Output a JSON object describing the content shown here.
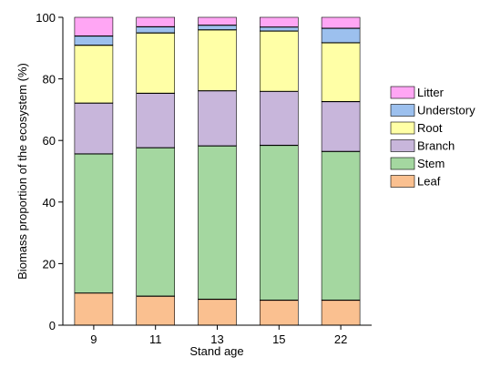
{
  "chart_data": {
    "type": "bar",
    "stacked": true,
    "categories": [
      "9",
      "11",
      "13",
      "15",
      "22"
    ],
    "xlabel": "Stand age",
    "ylabel": "Biomass proportion of the ecosystem (%)",
    "ylim": [
      0,
      100
    ],
    "yticks": [
      0,
      20,
      40,
      60,
      80,
      100
    ],
    "legend_position": "right",
    "series": [
      {
        "name": "Leaf",
        "color": "#FAC090",
        "values": [
          10.5,
          9.5,
          8.5,
          8.2,
          8.2
        ]
      },
      {
        "name": "Stem",
        "color": "#A4D7A0",
        "values": [
          45.2,
          48.2,
          49.8,
          50.3,
          48.3
        ]
      },
      {
        "name": "Branch",
        "color": "#C8B6DB",
        "values": [
          16.5,
          17.7,
          17.9,
          17.5,
          16.2
        ]
      },
      {
        "name": "Root",
        "color": "#FFFFA6",
        "values": [
          18.8,
          19.6,
          19.8,
          19.6,
          19.1
        ]
      },
      {
        "name": "Understory",
        "color": "#9CC0EE",
        "values": [
          3.0,
          2.0,
          1.5,
          1.3,
          4.7
        ]
      },
      {
        "name": "Litter",
        "color": "#FFA6F4",
        "values": [
          6.0,
          3.0,
          2.5,
          3.1,
          3.5
        ]
      }
    ],
    "legend_order": [
      "Litter",
      "Understory",
      "Root",
      "Branch",
      "Stem",
      "Leaf"
    ]
  }
}
